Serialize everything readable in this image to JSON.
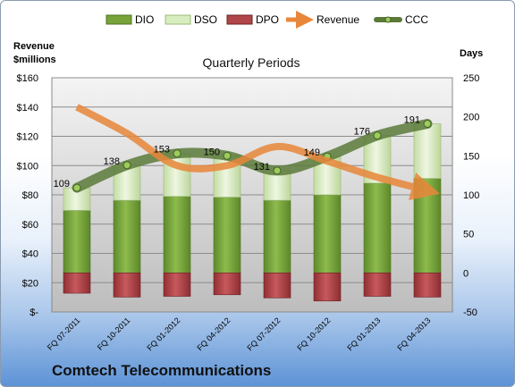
{
  "chart_data": {
    "type": "bar",
    "title": "Quarterly Periods",
    "company": "Comtech Telecommunications",
    "ylabel_left_line1": "Revenue",
    "ylabel_left_line2": "$millions",
    "ylabel_right": "Days",
    "categories": [
      "FQ 07-2011",
      "FQ 10-2011",
      "FQ 01-2012",
      "FQ 04-2012",
      "FQ 07-2012",
      "FQ 10-2012",
      "FQ 01-2013",
      "FQ 04-2013"
    ],
    "left_ticks": [
      "$160",
      "$140",
      "$120",
      "$100",
      "$80",
      "$60",
      "$40",
      "$20",
      "$-"
    ],
    "left_ylim": [
      0,
      160
    ],
    "right_ticks": [
      "250",
      "200",
      "150",
      "100",
      "50",
      "0",
      "-50"
    ],
    "right_ylim": [
      -50,
      250
    ],
    "legend": [
      "DIO",
      "DSO",
      "DPO",
      "Revenue",
      "CCC"
    ],
    "series": [
      {
        "name": "DIO",
        "axis": "right",
        "kind": "stacked-bar",
        "color": "#77a33a",
        "values": [
          80,
          93,
          98,
          97,
          93,
          100,
          115,
          121
        ]
      },
      {
        "name": "DSO",
        "axis": "right",
        "kind": "stacked-bar",
        "color": "#d8edbf",
        "values": [
          29,
          45,
          55,
          53,
          38,
          49,
          61,
          70
        ]
      },
      {
        "name": "DPO",
        "axis": "right",
        "kind": "negative-bar",
        "color": "#b0454a",
        "values": [
          -26,
          -31,
          -30,
          -28,
          -32,
          -36,
          -30,
          -31
        ]
      },
      {
        "name": "Revenue",
        "axis": "left",
        "kind": "line",
        "color": "#e8873a",
        "values": [
          140,
          122,
          100,
          100,
          113,
          103,
          92,
          83
        ]
      },
      {
        "name": "CCC",
        "axis": "right",
        "kind": "line",
        "color": "#5b7a3a",
        "values": [
          109,
          138,
          153,
          150,
          131,
          149,
          176,
          191
        ]
      }
    ],
    "ccc_labels": [
      "109",
      "138",
      "153",
      "150",
      "131",
      "149",
      "176",
      "191"
    ],
    "grid": true,
    "legend_position": "top"
  }
}
